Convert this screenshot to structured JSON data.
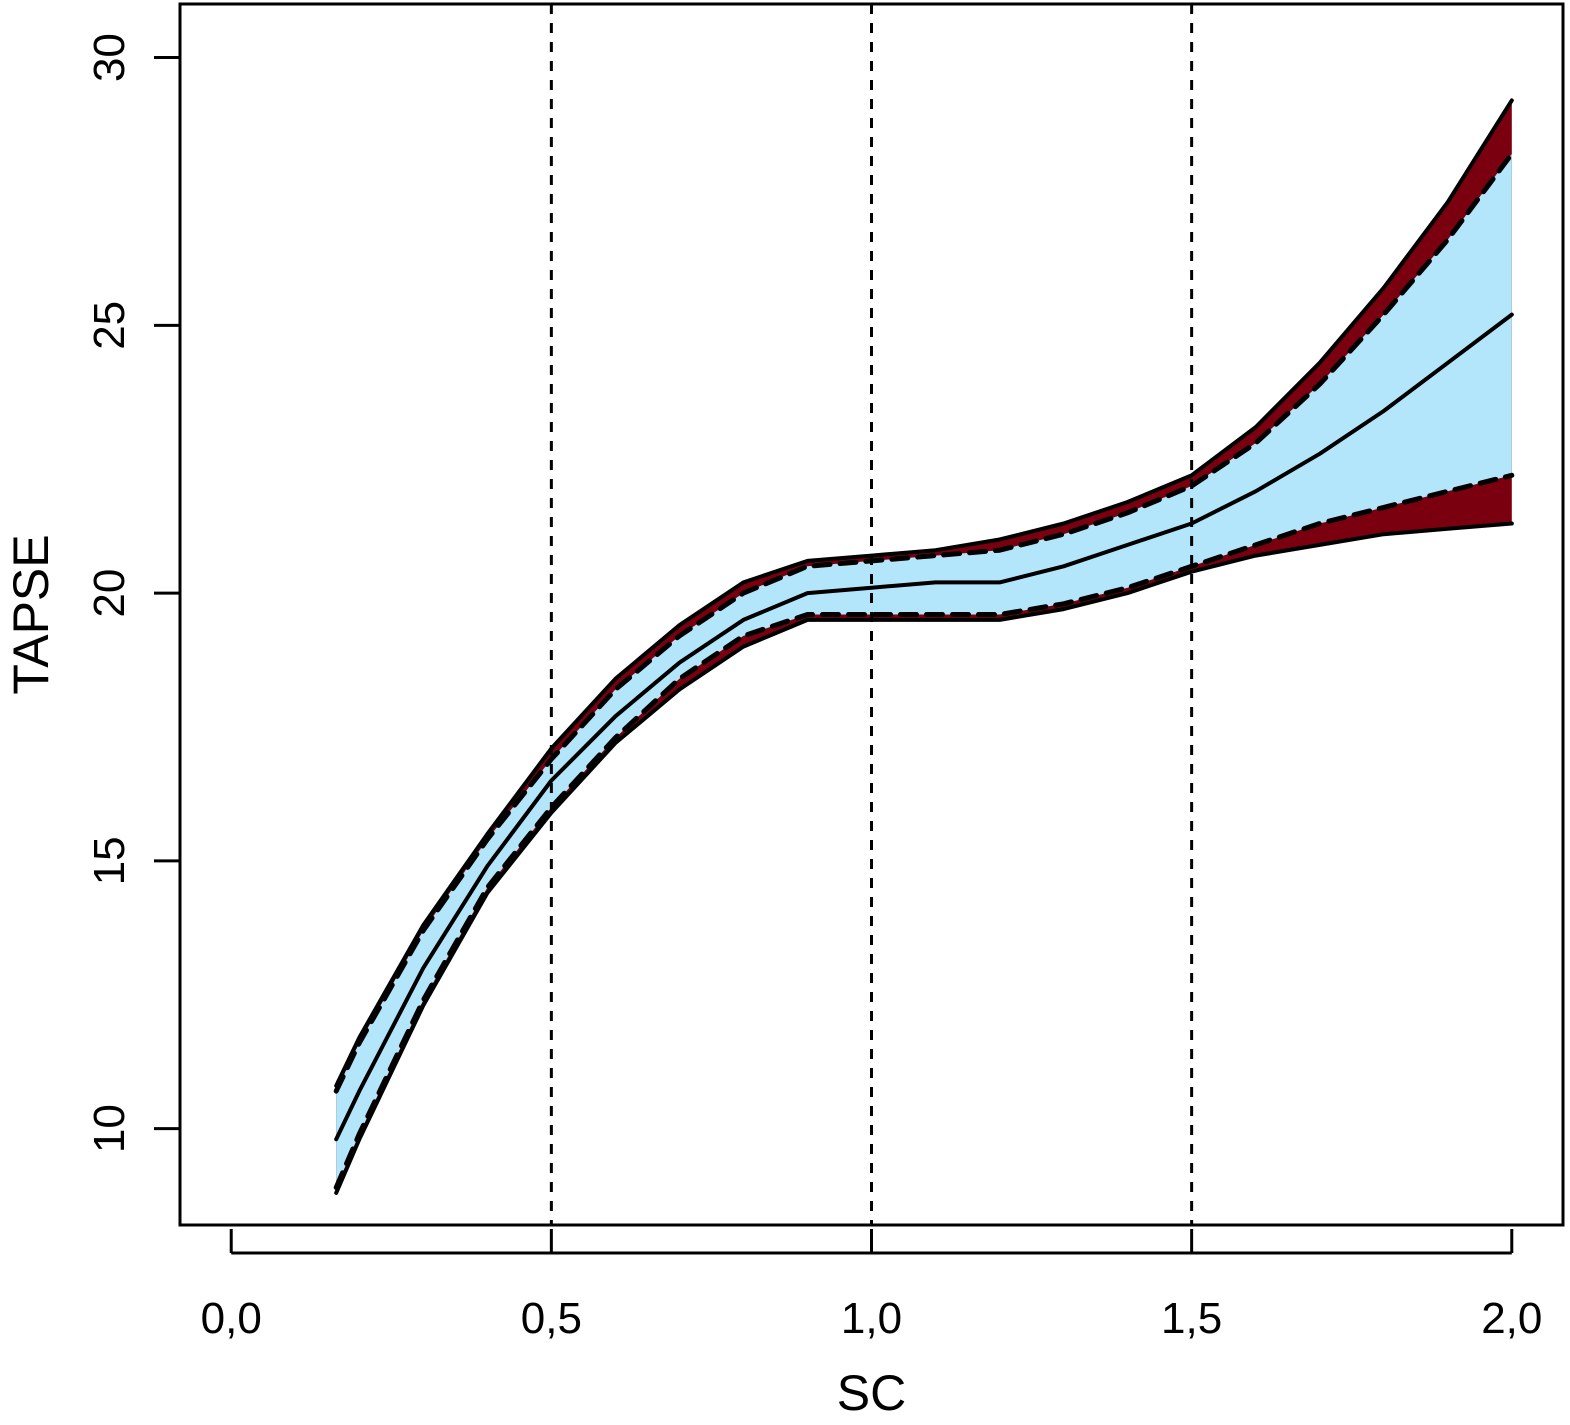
{
  "chart_data": {
    "type": "line",
    "title": "",
    "xlabel": "SC",
    "ylabel": "TAPSE",
    "xlim": [
      -0.08,
      2.08
    ],
    "ylim": [
      8.2,
      31.0
    ],
    "x_ticks": [
      0.0,
      0.5,
      1.0,
      1.5,
      2.0
    ],
    "x_tick_labels": [
      "0,0",
      "0,5",
      "1,0",
      "1,5",
      "2,0"
    ],
    "y_ticks": [
      10,
      15,
      20,
      25,
      30
    ],
    "y_tick_labels": [
      "10",
      "15",
      "20",
      "25",
      "30"
    ],
    "vertical_reference_lines": [
      0.5,
      1.0,
      1.5
    ],
    "grid": false,
    "legend": "none",
    "colors": {
      "inner_band": "#b3e5fb",
      "outer_band": "#7a0010",
      "lines": "#000000"
    },
    "x": [
      0.164,
      0.2,
      0.3,
      0.4,
      0.5,
      0.6,
      0.7,
      0.8,
      0.9,
      1.0,
      1.1,
      1.2,
      1.3,
      1.4,
      1.5,
      1.6,
      1.7,
      1.8,
      1.9,
      2.0
    ],
    "series": [
      {
        "style": "solid",
        "values": [
          9.8,
          10.7,
          13.0,
          14.9,
          16.5,
          17.7,
          18.7,
          19.5,
          20.0,
          20.1,
          20.2,
          20.2,
          20.5,
          20.9,
          21.3,
          21.9,
          22.6,
          23.4,
          24.3,
          25.2
        ]
      },
      {
        "style": "solid",
        "values": [
          10.8,
          11.7,
          13.8,
          15.5,
          17.1,
          18.4,
          19.4,
          20.2,
          20.6,
          20.7,
          20.8,
          21.0,
          21.3,
          21.7,
          22.2,
          23.1,
          24.3,
          25.7,
          27.3,
          29.2
        ]
      },
      {
        "style": "solid",
        "values": [
          8.8,
          9.8,
          12.3,
          14.4,
          15.9,
          17.2,
          18.2,
          19.0,
          19.5,
          19.5,
          19.5,
          19.5,
          19.7,
          20.0,
          20.4,
          20.7,
          20.9,
          21.1,
          21.2,
          21.3
        ]
      },
      {
        "style": "dashed",
        "values": [
          10.7,
          11.6,
          13.7,
          15.4,
          16.9,
          18.2,
          19.2,
          20.0,
          20.5,
          20.6,
          20.7,
          20.8,
          21.1,
          21.5,
          22.0,
          22.8,
          23.9,
          25.2,
          26.6,
          28.2
        ]
      },
      {
        "style": "dashed",
        "values": [
          8.9,
          9.9,
          12.4,
          14.5,
          16.0,
          17.3,
          18.4,
          19.2,
          19.6,
          19.6,
          19.6,
          19.6,
          19.8,
          20.1,
          20.5,
          20.9,
          21.3,
          21.6,
          21.9,
          22.2
        ]
      }
    ]
  }
}
